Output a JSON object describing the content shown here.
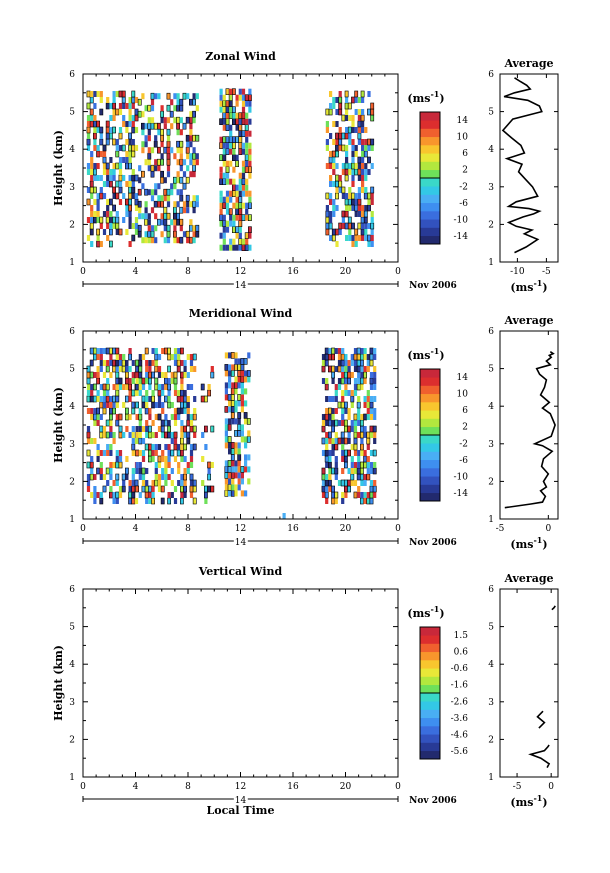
{
  "chart_data": [
    {
      "type": "heatmap",
      "title": "Zonal Wind",
      "ylabel": "Height (km)",
      "ylim": [
        1,
        6
      ],
      "yticks": [
        "1",
        "2",
        "3",
        "4",
        "5",
        "6"
      ],
      "xticks": [
        "0",
        "4",
        "8",
        "12",
        "16",
        "20",
        "0"
      ],
      "xlim": [
        0,
        24
      ],
      "date_marker": "14",
      "date_label": "Nov 2006",
      "colorbar": {
        "unit": "(ms",
        "unit_sup": "-1",
        "unit_close": ")",
        "labels": [
          "14",
          "10",
          "6",
          "2",
          "-2",
          "-6",
          "-10",
          "-14"
        ],
        "colors": [
          "#222a6e",
          "#283a96",
          "#3252be",
          "#3a6ede",
          "#3e8ff0",
          "#49aef4",
          "#33c8e6",
          "#3ad8c8",
          "#6ee05a",
          "#b2e83e",
          "#e8e838",
          "#f8c62e",
          "#f8962c",
          "#f0602e",
          "#dc2e2e",
          "#c8283a"
        ]
      },
      "data_columns": [
        {
          "t0": 0.3,
          "t1": 4.2,
          "h0": 1.4,
          "h1": 5.4,
          "density": 0.55
        },
        {
          "t0": 4.2,
          "t1": 8.6,
          "h0": 1.5,
          "h1": 5.4,
          "density": 0.5
        },
        {
          "t0": 10.4,
          "t1": 12.8,
          "h0": 1.3,
          "h1": 5.45,
          "density": 0.75
        },
        {
          "t0": 15.0,
          "t1": 15.2,
          "h0": 1.7,
          "h1": 1.9,
          "density": 0.3
        },
        {
          "t0": 18.5,
          "t1": 22.0,
          "h0": 1.4,
          "h1": 5.4,
          "density": 0.6
        }
      ],
      "average_profile": {
        "title": "Average",
        "xlabel": "(ms",
        "xlabel_sup": "-1",
        "xlabel_close": ")",
        "xticks": [
          "-10",
          "-5"
        ],
        "xlim": [
          -13,
          -3
        ],
        "ylim": [
          1,
          6
        ],
        "yticks": [
          "1",
          "2",
          "3",
          "4",
          "5",
          "6"
        ],
        "x": [
          -10.5,
          -8.5,
          -6.5,
          -8.8,
          -7.5,
          -10.2,
          -11.5,
          -9.0,
          -7.2,
          -6.2,
          -8.0,
          -11.5,
          -10.2,
          -6.5,
          -7.4,
          -8.6,
          -9.8,
          -9.2,
          -11.8,
          -8.8,
          -9.4,
          -11.0,
          -12.5,
          -10.8,
          -5.8,
          -6.2,
          -8.2,
          -12.3,
          -10.5,
          -7.8,
          -8.4,
          -9.5,
          -10.5
        ],
        "y": [
          1.25,
          1.4,
          1.6,
          1.75,
          1.85,
          1.95,
          2.05,
          2.2,
          2.28,
          2.35,
          2.42,
          2.48,
          2.6,
          2.75,
          3.0,
          3.2,
          3.4,
          3.6,
          3.75,
          3.9,
          4.1,
          4.3,
          4.5,
          4.8,
          5.0,
          5.15,
          5.3,
          5.4,
          5.5,
          5.6,
          5.7,
          5.8,
          5.9
        ]
      }
    },
    {
      "type": "heatmap",
      "title": "Meridional Wind",
      "ylabel": "Height (km)",
      "ylim": [
        1,
        6
      ],
      "yticks": [
        "1",
        "2",
        "3",
        "4",
        "5",
        "6"
      ],
      "xticks": [
        "0",
        "4",
        "8",
        "12",
        "16",
        "20",
        "0"
      ],
      "xlim": [
        0,
        24
      ],
      "date_marker": "14",
      "date_label": "Nov 2006",
      "colorbar": {
        "unit": "(ms",
        "unit_sup": "-1",
        "unit_close": ")",
        "labels": [
          "14",
          "10",
          "6",
          "2",
          "-2",
          "-6",
          "-10",
          "-14"
        ],
        "colors": [
          "#222a6e",
          "#283a96",
          "#3252be",
          "#3a6ede",
          "#3e8ff0",
          "#49aef4",
          "#33c8e6",
          "#3ad8c8",
          "#6ee05a",
          "#b2e83e",
          "#e8e838",
          "#f8c62e",
          "#f8962c",
          "#f0602e",
          "#dc2e2e",
          "#c8283a"
        ]
      },
      "data_columns": [
        {
          "t0": 0.3,
          "t1": 4.0,
          "h0": 1.4,
          "h1": 5.4,
          "density": 0.55
        },
        {
          "t0": 4.0,
          "t1": 8.6,
          "h0": 1.4,
          "h1": 5.4,
          "density": 0.55
        },
        {
          "t0": 9.0,
          "t1": 9.8,
          "h0": 1.4,
          "h1": 5.1,
          "density": 0.2
        },
        {
          "t0": 10.8,
          "t1": 12.6,
          "h0": 1.6,
          "h1": 5.4,
          "density": 0.65
        },
        {
          "t0": 15.2,
          "t1": 15.4,
          "h0": 1.0,
          "h1": 1.2,
          "density": 0.4
        },
        {
          "t0": 18.2,
          "t1": 22.2,
          "h0": 1.4,
          "h1": 5.4,
          "density": 0.65
        }
      ],
      "average_profile": {
        "title": "Average",
        "xlabel": "(ms",
        "xlabel_sup": "-1",
        "xlabel_close": ")",
        "xticks": [
          "-5",
          "0"
        ],
        "xlim": [
          -5,
          1
        ],
        "ylim": [
          1,
          6
        ],
        "yticks": [
          "1",
          "2",
          "3",
          "4",
          "5",
          "6"
        ],
        "x": [
          -4.5,
          -1.8,
          -0.6,
          -0.3,
          -0.8,
          -0.2,
          -0.5,
          0.0,
          -0.7,
          -0.5,
          0.4,
          -0.6,
          -1.4,
          0.3,
          0.7,
          0.2,
          -0.6,
          0.1,
          -0.8,
          -0.4,
          -0.2,
          -0.9,
          -1.2,
          -0.5,
          0.2,
          -0.2,
          0.3,
          0.1,
          0.5,
          0.2
        ],
        "y": [
          1.3,
          1.4,
          1.45,
          1.6,
          1.75,
          1.85,
          2.0,
          2.2,
          2.4,
          2.6,
          2.8,
          2.95,
          3.0,
          3.2,
          3.5,
          3.8,
          3.95,
          4.1,
          4.3,
          4.5,
          4.7,
          4.85,
          5.0,
          5.05,
          5.1,
          5.2,
          5.3,
          5.35,
          5.4,
          5.45
        ]
      }
    },
    {
      "type": "heatmap",
      "title": "Vertical Wind",
      "ylabel": "Height (km)",
      "ylim": [
        1,
        6
      ],
      "yticks": [
        "1",
        "2",
        "3",
        "4",
        "5",
        "6"
      ],
      "xticks": [
        "0",
        "4",
        "8",
        "12",
        "16",
        "20",
        "0"
      ],
      "xlim": [
        0,
        24
      ],
      "date_marker": "14",
      "date_label": "Nov 2006",
      "xlabel": "Local Time",
      "colorbar": {
        "unit": "(ms",
        "unit_sup": "-1",
        "unit_close": ")",
        "labels": [
          "1.5",
          "0.6",
          "-0.6",
          "-1.6",
          "-2.6",
          "-3.6",
          "-4.6",
          "-5.6"
        ],
        "colors": [
          "#222a6e",
          "#283a96",
          "#3252be",
          "#3a6ede",
          "#3e8ff0",
          "#49aef4",
          "#33c8e6",
          "#3ad8c8",
          "#6ee05a",
          "#b2e83e",
          "#e8e838",
          "#f8c62e",
          "#f8962c",
          "#f0602e",
          "#dc2e2e",
          "#c8283a"
        ]
      },
      "data_columns": [],
      "average_profile": {
        "title": "Average",
        "xlabel": "(ms",
        "xlabel_sup": "-1",
        "xlabel_close": ")",
        "xticks": [
          "-5",
          "0"
        ],
        "xlim": [
          -7.5,
          1
        ],
        "ylim": [
          1,
          6
        ],
        "yticks": [
          "1",
          "2",
          "3",
          "4",
          "5",
          "6"
        ],
        "segments": [
          {
            "x": [
              -0.6,
              -0.3,
              -1.5,
              -3.0,
              -1.0,
              -0.5,
              -0.3
            ],
            "y": [
              1.25,
              1.35,
              1.5,
              1.6,
              1.7,
              1.8,
              1.85
            ]
          },
          {
            "x": [
              -1.8,
              -1.0,
              -2.0,
              -1.2
            ],
            "y": [
              2.3,
              2.45,
              2.6,
              2.75
            ]
          },
          {
            "x": [
              0.1,
              0.4,
              0.6
            ],
            "y": [
              5.45,
              5.5,
              5.55
            ]
          }
        ]
      }
    }
  ]
}
